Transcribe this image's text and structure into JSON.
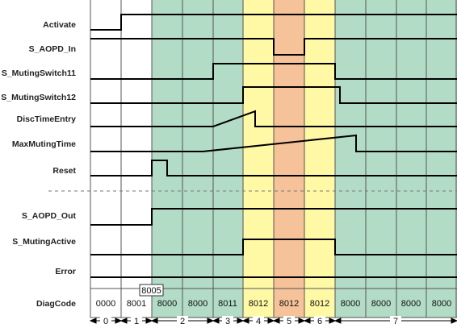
{
  "colors": {
    "green": "#b3dcc7",
    "yellow": "#fff8a5",
    "orange": "#f6c299",
    "grid": "#555555",
    "trace": "#000000"
  },
  "signals": [
    "Activate",
    "S_AOPD_In",
    "S_MutingSwitch11",
    "S_MutingSwitch12",
    "DiscTimeEntry",
    "MaxMutingTime",
    "Reset",
    "S_AOPD_Out",
    "S_MutingActive",
    "Error"
  ],
  "diag": {
    "label": "DiagCode",
    "codes": [
      "0000",
      "8001",
      "8000",
      "8000",
      "8011",
      "8012",
      "8012",
      "8012",
      "8000",
      "8000",
      "8000",
      "8000"
    ],
    "transient_code": "8005"
  },
  "phases": [
    "0",
    "1",
    "2",
    "3",
    "4",
    "5",
    "6",
    "7"
  ]
}
